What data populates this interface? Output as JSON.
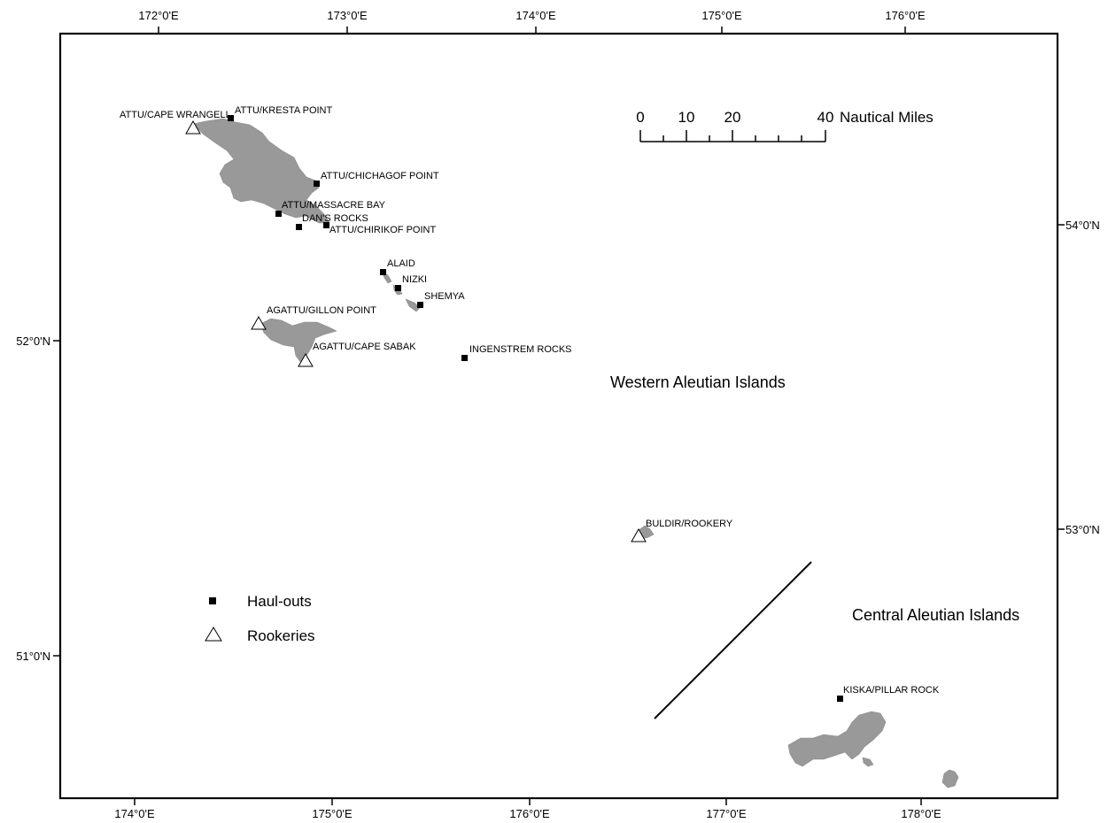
{
  "map": {
    "top_axis_labels": [
      "172°0'E",
      "173°0'E",
      "174°0'E",
      "175°0'E",
      "176°0'E"
    ],
    "bottom_axis_labels": [
      "174°0'E",
      "175°0'E",
      "176°0'E",
      "177°0'E",
      "178°0'E"
    ],
    "right_axis_labels": [
      "54°0'N",
      "53°0'N"
    ],
    "left_axis_labels": [
      "52°0'N",
      "51°0'N"
    ],
    "regions": {
      "western": "Western Aleutian Islands",
      "central": "Central Aleutian Islands"
    },
    "scale_bar": {
      "ticks": [
        "0",
        "10",
        "20",
        "40"
      ],
      "unit": "Nautical Miles"
    },
    "legend": {
      "haulouts": "Haul-outs",
      "rookeries": "Rookeries"
    },
    "sites": {
      "cape_wrangell": {
        "name": "ATTU/CAPE WRANGELL",
        "type": "rookery"
      },
      "kresta_point": {
        "name": "ATTU/KRESTA POINT",
        "type": "haul-out"
      },
      "chichagof_point": {
        "name": "ATTU/CHICHAGOF POINT",
        "type": "haul-out"
      },
      "massacre_bay": {
        "name": "ATTU/MASSACRE BAY",
        "type": "haul-out"
      },
      "dans_rocks": {
        "name": "DAN'S ROCKS",
        "type": "haul-out"
      },
      "chirikof_point": {
        "name": "ATTU/CHIRIKOF POINT",
        "type": "haul-out"
      },
      "alaid": {
        "name": "ALAID",
        "type": "haul-out"
      },
      "nizki": {
        "name": "NIZKI",
        "type": "haul-out"
      },
      "shemya": {
        "name": "SHEMYA",
        "type": "haul-out"
      },
      "gillon_point": {
        "name": "AGATTU/GILLON POINT",
        "type": "rookery"
      },
      "cape_sabak": {
        "name": "AGATTU/CAPE SABAK",
        "type": "rookery"
      },
      "ingenstrem": {
        "name": "INGENSTREM ROCKS",
        "type": "haul-out"
      },
      "buldir": {
        "name": "BULDIR/ROOKERY",
        "type": "rookery"
      },
      "kiska": {
        "name": "KISKA/PILLAR ROCK",
        "type": "haul-out"
      }
    }
  }
}
